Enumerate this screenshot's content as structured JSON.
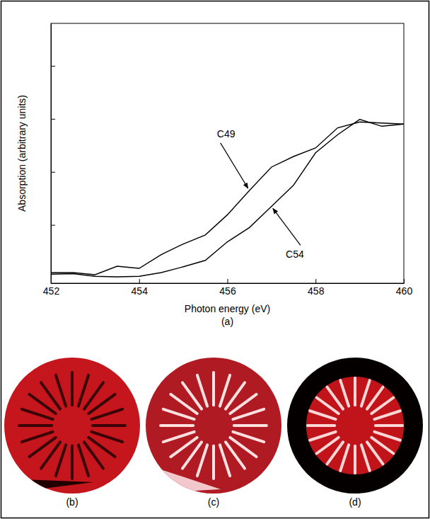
{
  "chart_data": {
    "type": "line",
    "xlabel": "Photon energy  (eV)",
    "ylabel": "Absorption  (arbitrary units)",
    "caption": "(a)",
    "x": [
      452,
      452.5,
      453,
      453.5,
      454,
      454.5,
      455,
      455.5,
      456,
      456.5,
      457,
      457.5,
      458,
      458.5,
      459,
      459.5,
      460
    ],
    "series": [
      {
        "name": "C49",
        "color": "#000000",
        "values": [
          0.1,
          0.1,
          0.06,
          0.22,
          0.18,
          0.44,
          0.64,
          0.81,
          1.19,
          1.65,
          2.09,
          2.29,
          2.45,
          2.83,
          2.94,
          2.92,
          2.9
        ]
      },
      {
        "name": "C54",
        "color": "#000000",
        "values": [
          0.07,
          0.08,
          0.03,
          0.02,
          0.03,
          0.1,
          0.21,
          0.33,
          0.68,
          0.95,
          1.35,
          1.75,
          2.36,
          2.7,
          2.99,
          2.86,
          2.9
        ]
      }
    ],
    "xlim": [
      452,
      460
    ],
    "ylim": [
      -0.1,
      4.8
    ],
    "xticks": [
      452,
      454,
      456,
      458,
      460
    ],
    "yticks": [
      1,
      2,
      3,
      4
    ],
    "tick_labels": "x"
  },
  "images": [
    {
      "caption": "(b)"
    },
    {
      "caption": "(c)"
    },
    {
      "caption": "(d)"
    }
  ]
}
